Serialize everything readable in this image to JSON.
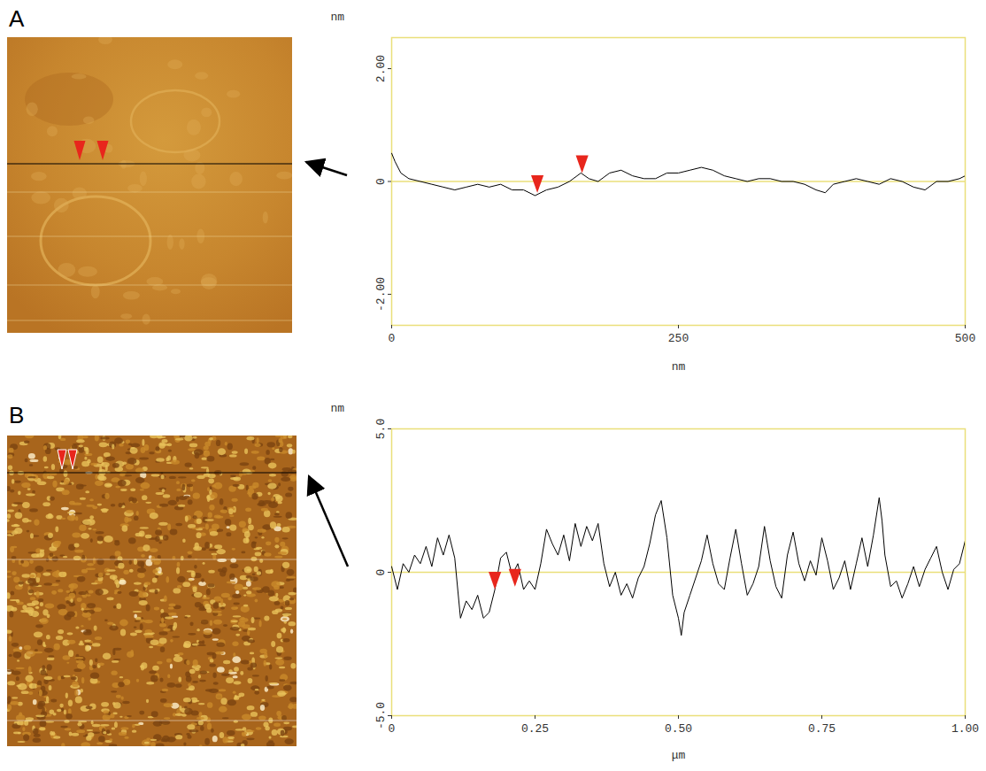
{
  "chart_data": [
    {
      "panel": "A",
      "type": "line",
      "color": "#000000",
      "x_label": "nm",
      "y_label": "nm",
      "xlim": [
        0,
        500
      ],
      "ylim": [
        -2.55,
        2.55
      ],
      "xticks": [
        0,
        250,
        500
      ],
      "yticks": [
        {
          "value": -2,
          "label": "-2.00"
        },
        0,
        {
          "value": 2,
          "label": "2.00"
        }
      ],
      "grid": false,
      "baseline": 0,
      "x": [
        0,
        3,
        8,
        15,
        25,
        35,
        45,
        55,
        65,
        75,
        85,
        95,
        105,
        115,
        125,
        135,
        145,
        155,
        165,
        172,
        180,
        190,
        200,
        210,
        220,
        230,
        240,
        250,
        260,
        270,
        280,
        290,
        300,
        310,
        320,
        330,
        340,
        350,
        360,
        370,
        378,
        385,
        395,
        405,
        415,
        425,
        435,
        445,
        455,
        465,
        475,
        485,
        495,
        500
      ],
      "values": [
        0.5,
        0.35,
        0.15,
        0.05,
        0.0,
        -0.05,
        -0.1,
        -0.15,
        -0.1,
        -0.05,
        -0.1,
        -0.05,
        -0.15,
        -0.15,
        -0.25,
        -0.15,
        -0.1,
        0.0,
        0.15,
        0.05,
        0.0,
        0.15,
        0.2,
        0.1,
        0.05,
        0.05,
        0.15,
        0.15,
        0.2,
        0.25,
        0.2,
        0.1,
        0.05,
        0.0,
        0.05,
        0.05,
        0.0,
        0.0,
        -0.05,
        -0.15,
        -0.2,
        -0.05,
        0.0,
        0.05,
        0.0,
        -0.05,
        0.05,
        0.0,
        -0.1,
        -0.15,
        0.0,
        0.0,
        0.05,
        0.1
      ],
      "markers": {
        "x": [
          127,
          166
        ],
        "y": [
          -0.2,
          0.15
        ],
        "color": "#e8261c",
        "marker": "triangle-down"
      }
    },
    {
      "panel": "B",
      "type": "line",
      "color": "#000000",
      "x_label": "μm",
      "y_label": "nm",
      "xlim": [
        0,
        1
      ],
      "ylim": [
        -5,
        5
      ],
      "xticks": [
        0,
        0.25,
        {
          "value": 0.5,
          "label": "0.50"
        },
        0.75,
        {
          "value": 1,
          "label": "1.00"
        }
      ],
      "yticks": [
        {
          "value": -5,
          "label": "-5.0"
        },
        0,
        {
          "value": 5,
          "label": "5.0"
        }
      ],
      "grid": false,
      "baseline": 0,
      "x": [
        0,
        0.01,
        0.02,
        0.03,
        0.04,
        0.05,
        0.06,
        0.07,
        0.08,
        0.09,
        0.1,
        0.11,
        0.12,
        0.13,
        0.14,
        0.15,
        0.16,
        0.17,
        0.18,
        0.19,
        0.2,
        0.21,
        0.22,
        0.23,
        0.24,
        0.25,
        0.26,
        0.27,
        0.28,
        0.29,
        0.3,
        0.31,
        0.32,
        0.33,
        0.34,
        0.35,
        0.36,
        0.37,
        0.38,
        0.39,
        0.4,
        0.41,
        0.42,
        0.43,
        0.44,
        0.45,
        0.46,
        0.47,
        0.48,
        0.49,
        0.5,
        0.505,
        0.51,
        0.52,
        0.53,
        0.54,
        0.55,
        0.56,
        0.57,
        0.58,
        0.59,
        0.6,
        0.61,
        0.62,
        0.63,
        0.64,
        0.65,
        0.66,
        0.67,
        0.68,
        0.69,
        0.7,
        0.71,
        0.72,
        0.73,
        0.74,
        0.75,
        0.76,
        0.77,
        0.78,
        0.79,
        0.8,
        0.81,
        0.82,
        0.83,
        0.84,
        0.85,
        0.855,
        0.86,
        0.87,
        0.88,
        0.89,
        0.9,
        0.91,
        0.92,
        0.93,
        0.94,
        0.95,
        0.96,
        0.97,
        0.98,
        0.99,
        1.0
      ],
      "values": [
        0.2,
        -0.6,
        0.3,
        0.0,
        0.6,
        0.3,
        0.9,
        0.2,
        1.2,
        0.6,
        1.3,
        0.5,
        -1.6,
        -1.0,
        -1.3,
        -0.8,
        -1.6,
        -1.4,
        -0.6,
        0.5,
        0.7,
        -0.1,
        0.3,
        -0.6,
        -0.3,
        -0.6,
        0.3,
        1.5,
        1.0,
        0.6,
        1.3,
        0.4,
        1.7,
        0.9,
        1.6,
        1.1,
        1.7,
        0.3,
        -0.5,
        0.0,
        -0.8,
        -0.4,
        -0.9,
        -0.2,
        0.2,
        1.0,
        2.0,
        2.5,
        1.2,
        -0.8,
        -1.6,
        -2.2,
        -1.4,
        -0.8,
        -0.2,
        0.4,
        1.3,
        0.3,
        -0.4,
        -0.6,
        0.5,
        1.5,
        0.3,
        -0.8,
        -0.4,
        0.2,
        1.6,
        0.4,
        -0.5,
        -0.9,
        0.6,
        1.4,
        0.3,
        -0.3,
        0.4,
        -0.1,
        1.2,
        0.4,
        -0.6,
        -0.2,
        0.4,
        -0.6,
        0.3,
        1.2,
        0.2,
        1.3,
        2.6,
        1.8,
        0.6,
        -0.5,
        -0.3,
        -0.9,
        -0.4,
        0.2,
        -0.5,
        0.1,
        0.5,
        0.9,
        0.0,
        -0.6,
        0.1,
        0.3,
        1.1
      ],
      "markers": {
        "x": [
          0.18,
          0.215
        ],
        "y": [
          -0.6,
          -0.5
        ],
        "color": "#e8261c",
        "marker": "triangle-down"
      }
    }
  ]
}
